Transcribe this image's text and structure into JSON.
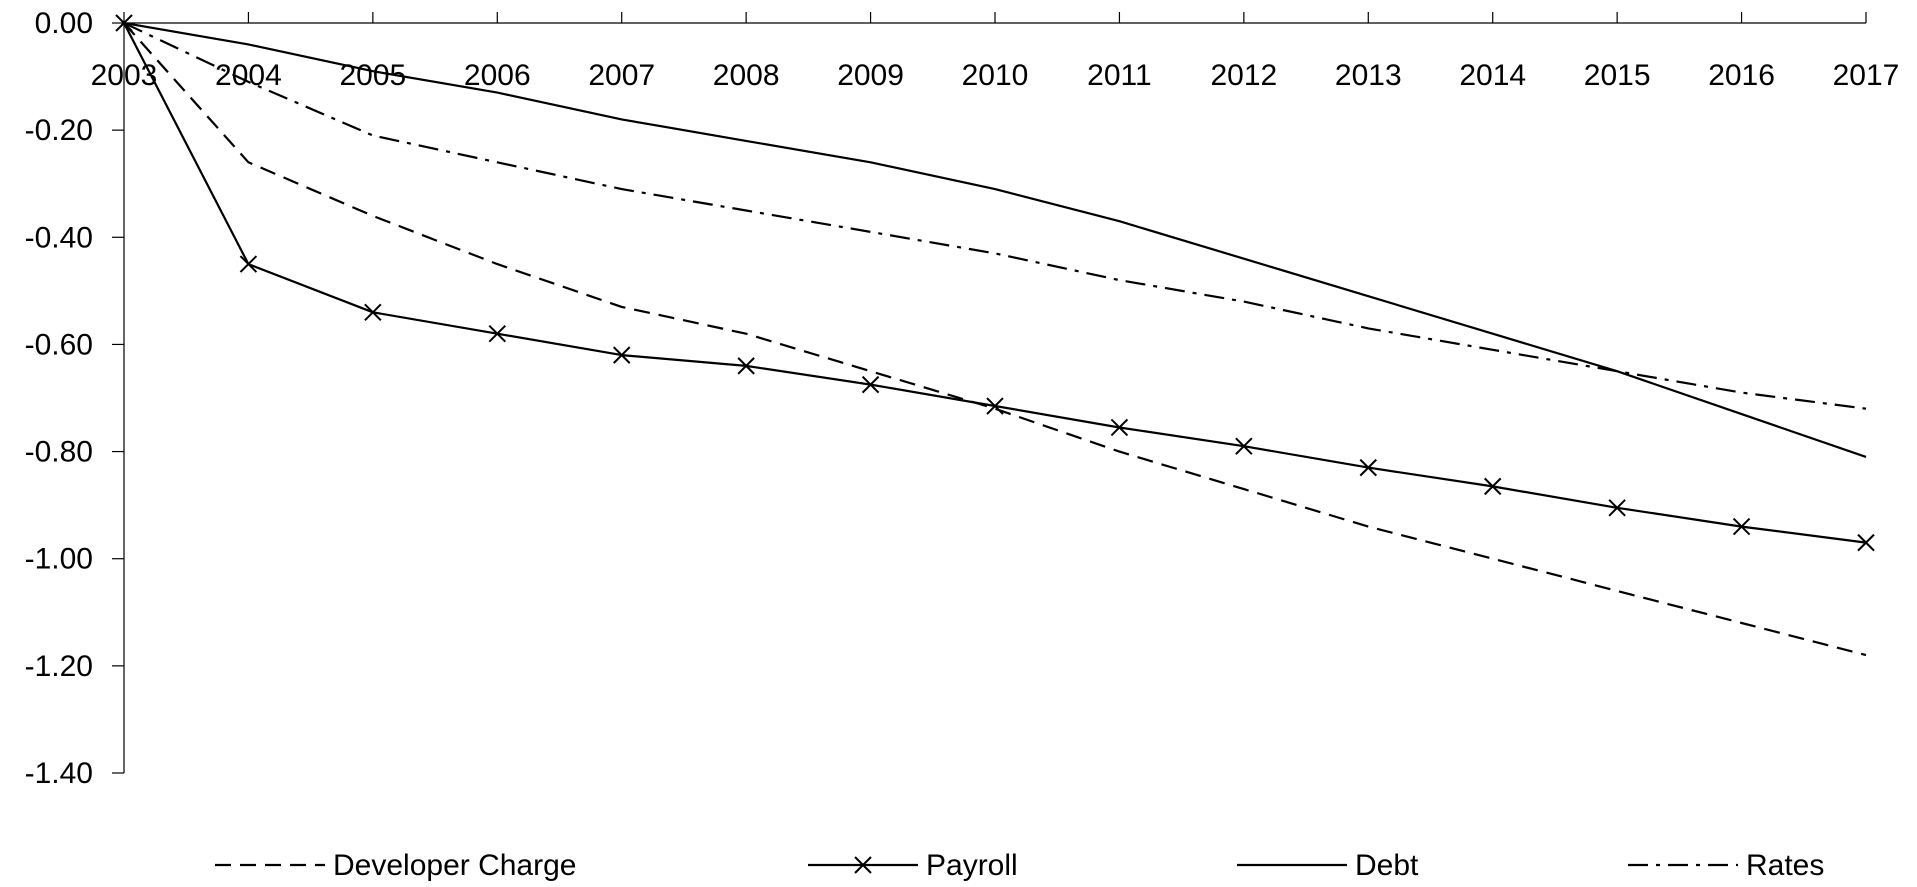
{
  "chart_data": {
    "type": "line",
    "title": "",
    "xlabel": "",
    "ylabel": "",
    "x": [
      2003,
      2004,
      2005,
      2006,
      2007,
      2008,
      2009,
      2010,
      2011,
      2012,
      2013,
      2014,
      2015,
      2016,
      2017
    ],
    "x_tick_labels": [
      "2003",
      "2004",
      "2005",
      "2006",
      "2007",
      "2008",
      "2009",
      "2010",
      "2011",
      "2012",
      "2013",
      "2014",
      "2015",
      "2016",
      "2017"
    ],
    "ylim": [
      -1.4,
      0
    ],
    "y_ticks": [
      0,
      -0.2,
      -0.4,
      -0.6,
      -0.8,
      -1.0,
      -1.2,
      -1.4
    ],
    "y_tick_labels": [
      "0.00",
      "-0.20",
      "-0.40",
      "-0.60",
      "-0.80",
      "-1.00",
      "-1.20",
      "-1.40"
    ],
    "grid": false,
    "legend_position": "bottom",
    "series": [
      {
        "name": "Developer Charge",
        "style": "dashed",
        "marker": "none",
        "values": [
          0,
          -0.26,
          -0.36,
          -0.45,
          -0.53,
          -0.58,
          -0.65,
          -0.72,
          -0.8,
          -0.87,
          -0.94,
          -1.0,
          -1.06,
          -1.12,
          -1.18
        ]
      },
      {
        "name": "Payroll",
        "style": "solid",
        "marker": "x",
        "values": [
          0,
          -0.45,
          -0.54,
          -0.58,
          -0.62,
          -0.64,
          -0.675,
          -0.715,
          -0.755,
          -0.79,
          -0.83,
          -0.865,
          -0.905,
          -0.94,
          -0.97
        ]
      },
      {
        "name": "Debt",
        "style": "solid",
        "marker": "none",
        "values": [
          0,
          -0.04,
          -0.09,
          -0.13,
          -0.18,
          -0.22,
          -0.26,
          -0.31,
          -0.37,
          -0.44,
          -0.51,
          -0.58,
          -0.65,
          -0.73,
          -0.81
        ]
      },
      {
        "name": "Rates",
        "style": "dashdot",
        "marker": "none",
        "values": [
          0,
          -0.11,
          -0.21,
          -0.26,
          -0.31,
          -0.35,
          -0.39,
          -0.43,
          -0.48,
          -0.52,
          -0.57,
          -0.61,
          -0.65,
          -0.69,
          -0.72
        ]
      }
    ]
  }
}
